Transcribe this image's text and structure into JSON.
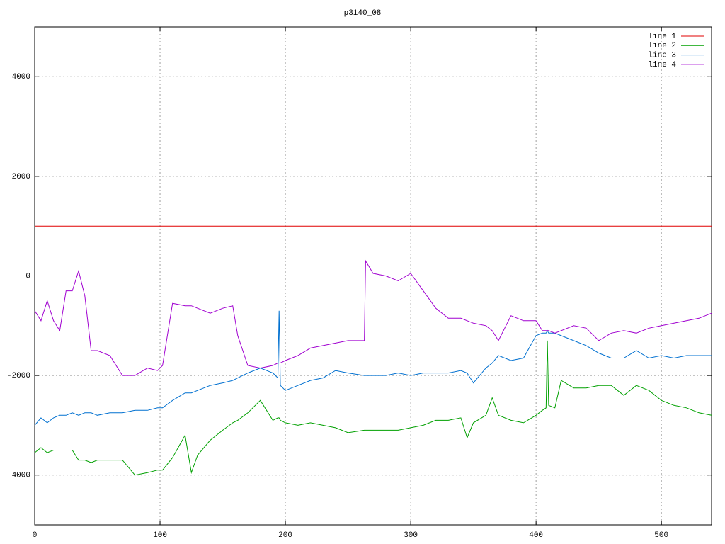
{
  "chart_data": {
    "type": "line",
    "title": "p3140_08",
    "x": [
      0,
      5,
      10,
      15,
      20,
      25,
      30,
      35,
      40,
      45,
      50,
      60,
      70,
      80,
      90,
      98,
      102,
      110,
      120,
      125,
      130,
      140,
      150,
      158,
      162,
      170,
      180,
      190,
      194,
      195,
      196,
      200,
      210,
      220,
      230,
      240,
      250,
      263,
      264,
      270,
      280,
      290,
      300,
      310,
      320,
      330,
      340,
      345,
      350,
      360,
      365,
      370,
      380,
      390,
      400,
      405,
      408,
      409,
      410,
      415,
      420,
      430,
      440,
      450,
      460,
      470,
      480,
      490,
      500,
      510,
      520,
      530,
      540
    ],
    "series": [
      {
        "name": "line 1",
        "color": "#e00000",
        "values": [
          1000,
          1000,
          1000,
          1000,
          1000,
          1000,
          1000,
          1000,
          1000,
          1000,
          1000,
          1000,
          1000,
          1000,
          1000,
          1000,
          1000,
          1000,
          1000,
          1000,
          1000,
          1000,
          1000,
          1000,
          1000,
          1000,
          1000,
          1000,
          1000,
          1000,
          1000,
          1000,
          1000,
          1000,
          1000,
          1000,
          1000,
          1000,
          1000,
          1000,
          1000,
          1000,
          1000,
          1000,
          1000,
          1000,
          1000,
          1000,
          1000,
          1000,
          1000,
          1000,
          1000,
          1000,
          1000,
          1000,
          1000,
          1000,
          1000,
          1000,
          1000,
          1000,
          1000,
          1000,
          1000,
          1000,
          1000,
          1000,
          1000,
          1000,
          1000,
          1000,
          1000
        ]
      },
      {
        "name": "line 2",
        "color": "#00a000",
        "values": [
          -3550,
          -3450,
          -3550,
          -3500,
          -3500,
          -3500,
          -3500,
          -3700,
          -3700,
          -3750,
          -3700,
          -3700,
          -3700,
          -4000,
          -3950,
          -3900,
          -3900,
          -3650,
          -3200,
          -3950,
          -3600,
          -3300,
          -3100,
          -2950,
          -2900,
          -2750,
          -2500,
          -2900,
          -2850,
          -2850,
          -2900,
          -2950,
          -3000,
          -2950,
          -3000,
          -3050,
          -3150,
          -3100,
          -3100,
          -3100,
          -3100,
          -3100,
          -3050,
          -3000,
          -2900,
          -2900,
          -2850,
          -3250,
          -2950,
          -2800,
          -2450,
          -2800,
          -2900,
          -2950,
          -2800,
          -2700,
          -2650,
          -1300,
          -2600,
          -2650,
          -2100,
          -2250,
          -2250,
          -2200,
          -2200,
          -2400,
          -2200,
          -2300,
          -2500,
          -2600,
          -2650,
          -2750,
          -2800
        ]
      },
      {
        "name": "line 3",
        "color": "#0070d0",
        "values": [
          -3000,
          -2850,
          -2950,
          -2850,
          -2800,
          -2800,
          -2750,
          -2800,
          -2750,
          -2750,
          -2800,
          -2750,
          -2750,
          -2700,
          -2700,
          -2650,
          -2650,
          -2500,
          -2350,
          -2350,
          -2300,
          -2200,
          -2150,
          -2100,
          -2050,
          -1950,
          -1850,
          -1950,
          -2050,
          -700,
          -2200,
          -2300,
          -2200,
          -2100,
          -2050,
          -1900,
          -1950,
          -2000,
          -2000,
          -2000,
          -2000,
          -1950,
          -2000,
          -1950,
          -1950,
          -1950,
          -1900,
          -1950,
          -2150,
          -1850,
          -1750,
          -1600,
          -1700,
          -1650,
          -1200,
          -1150,
          -1150,
          -1100,
          -1150,
          -1150,
          -1200,
          -1300,
          -1400,
          -1550,
          -1650,
          -1650,
          -1500,
          -1650,
          -1600,
          -1650,
          -1600,
          -1600,
          -1600
        ]
      },
      {
        "name": "line 4",
        "color": "#a000d0",
        "values": [
          -700,
          -900,
          -500,
          -900,
          -1100,
          -300,
          -300,
          100,
          -400,
          -1500,
          -1500,
          -1600,
          -2000,
          -2000,
          -1850,
          -1900,
          -1800,
          -550,
          -600,
          -600,
          -650,
          -750,
          -650,
          -600,
          -1200,
          -1800,
          -1850,
          -1800,
          -1750,
          -1750,
          -1750,
          -1700,
          -1600,
          -1450,
          -1400,
          -1350,
          -1300,
          -1300,
          300,
          50,
          0,
          -100,
          50,
          -300,
          -650,
          -850,
          -850,
          -900,
          -950,
          -1000,
          -1100,
          -1300,
          -800,
          -900,
          -900,
          -1100,
          -1100,
          -1100,
          -1100,
          -1150,
          -1100,
          -1000,
          -1050,
          -1300,
          -1150,
          -1100,
          -1150,
          -1050,
          -1000,
          -950,
          -900,
          -850,
          -750
        ]
      }
    ],
    "xlim": [
      0,
      540
    ],
    "xticks": [
      0,
      100,
      200,
      300,
      400,
      500
    ],
    "ylim": [
      -5000,
      5000
    ],
    "yticks": [
      -4000,
      -2000,
      0,
      2000,
      4000
    ],
    "grid": true,
    "legend": "top-right"
  }
}
